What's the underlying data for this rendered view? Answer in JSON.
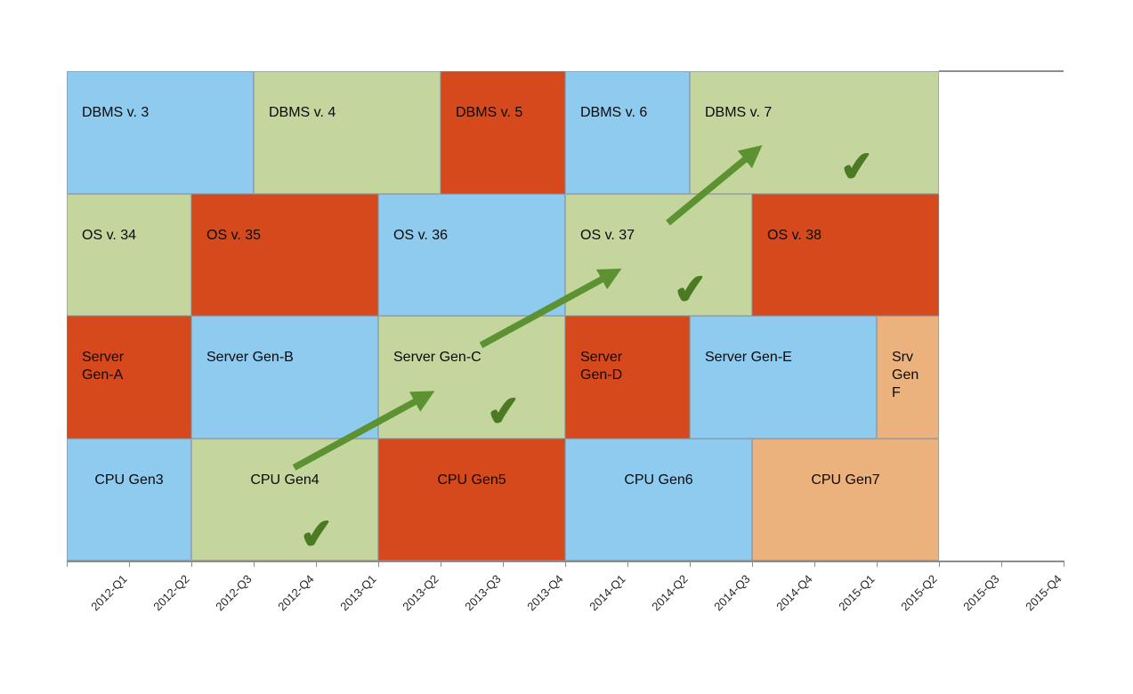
{
  "chart_data": {
    "type": "timeline",
    "title": "",
    "x": {
      "unit": "quarter",
      "tick_labels": [
        "2012-Q1",
        "2012-Q2",
        "2012-Q3",
        "2012-Q4",
        "2013-Q1",
        "2013-Q2",
        "2013-Q3",
        "2013-Q4",
        "2014-Q1",
        "2014-Q2",
        "2014-Q3",
        "2014-Q4",
        "2015-Q1",
        "2015-Q2",
        "2015-Q3",
        "2015-Q4"
      ],
      "range": [
        "2012-Q1",
        "2015-Q4"
      ],
      "bars_span_quarters": 14
    },
    "palette": {
      "blue": "#8FCBEE",
      "green": "#C4D59E",
      "red": "#D5491D",
      "tan": "#ECB27D"
    },
    "rows": [
      {
        "name": "DBMS",
        "bars": [
          {
            "label": "DBMS v. 3",
            "start": 0,
            "duration": 3,
            "color": "blue"
          },
          {
            "label": "DBMS v. 4",
            "start": 3,
            "duration": 3,
            "color": "green"
          },
          {
            "label": "DBMS v. 5",
            "start": 6,
            "duration": 2,
            "color": "red"
          },
          {
            "label": "DBMS v. 6",
            "start": 8,
            "duration": 2,
            "color": "blue"
          },
          {
            "label": "DBMS v. 7",
            "start": 10,
            "duration": 4,
            "color": "green"
          }
        ]
      },
      {
        "name": "OS",
        "bars": [
          {
            "label": "OS v. 34",
            "start": 0,
            "duration": 2,
            "color": "green"
          },
          {
            "label": "OS v. 35",
            "start": 2,
            "duration": 3,
            "color": "red"
          },
          {
            "label": "OS v. 36",
            "start": 5,
            "duration": 3,
            "color": "blue"
          },
          {
            "label": "OS v. 37",
            "start": 8,
            "duration": 3,
            "color": "green"
          },
          {
            "label": "OS v. 38",
            "start": 11,
            "duration": 3,
            "color": "red"
          }
        ]
      },
      {
        "name": "Server",
        "bars": [
          {
            "label": "Server\nGen-A",
            "start": 0,
            "duration": 2,
            "color": "red"
          },
          {
            "label": "Server Gen-B",
            "start": 2,
            "duration": 3,
            "color": "blue"
          },
          {
            "label": "Server Gen-C",
            "start": 5,
            "duration": 3,
            "color": "green"
          },
          {
            "label": "Server\nGen-D",
            "start": 8,
            "duration": 2,
            "color": "red"
          },
          {
            "label": "Server Gen-E",
            "start": 10,
            "duration": 3,
            "color": "blue"
          },
          {
            "label": "Srv\nGen\nF",
            "start": 13,
            "duration": 1,
            "color": "tan"
          }
        ]
      },
      {
        "name": "CPU",
        "bars": [
          {
            "label": "CPU Gen3",
            "start": 0,
            "duration": 2,
            "color": "blue"
          },
          {
            "label": "CPU Gen4",
            "start": 2,
            "duration": 3,
            "color": "green"
          },
          {
            "label": "CPU Gen5",
            "start": 5,
            "duration": 3,
            "color": "red"
          },
          {
            "label": "CPU Gen6",
            "start": 8,
            "duration": 3,
            "color": "blue"
          },
          {
            "label": "CPU Gen7",
            "start": 11,
            "duration": 3,
            "color": "tan"
          }
        ]
      }
    ],
    "annotations": {
      "arrow_color": "#5C9231",
      "check_color": "#4B7A23",
      "check_glyph": "✔",
      "checkmarks": [
        "CPU Gen4",
        "Server Gen-C",
        "OS v. 37",
        "DBMS v. 7"
      ],
      "arrows": [
        {
          "from": "CPU Gen4",
          "to": "Server Gen-C"
        },
        {
          "from": "Server Gen-C",
          "to": "OS v. 37"
        },
        {
          "from": "OS v. 37",
          "to": "DBMS v. 7"
        }
      ]
    },
    "axis_color": "#8C8C8C",
    "grid": false,
    "legend": false
  }
}
